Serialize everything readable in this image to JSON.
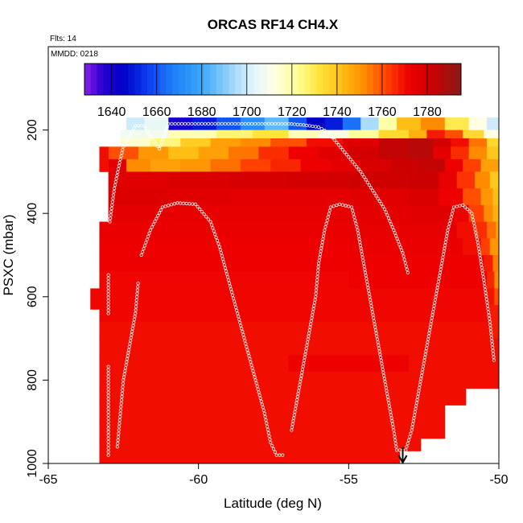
{
  "chart_data": {
    "type": "heatmap",
    "title": "ORCAS RF14 CH4.X",
    "flights_note": "Flts: 14",
    "date_note": "MMDD: 0218",
    "xlabel": "Latitude (deg N)",
    "ylabel": "PSXC (mbar)",
    "xlim": [
      -65,
      -50
    ],
    "ylim": [
      1000,
      0
    ],
    "x_ticks": [
      -65,
      -60,
      -55,
      -50
    ],
    "x_tick_labels": [
      "-65",
      "-60",
      "-55",
      "-50"
    ],
    "y_ticks": [
      200,
      400,
      600,
      800,
      1000
    ],
    "y_tick_labels": [
      "200",
      "400",
      "600",
      "800",
      "1000"
    ],
    "colorbar": {
      "range": [
        1628,
        1795
      ],
      "ticks": [
        1640,
        1660,
        1680,
        1700,
        1720,
        1740,
        1760,
        1780
      ],
      "tick_labels": [
        "1640",
        "1660",
        "1680",
        "1700",
        "1720",
        "1740",
        "1760",
        "1780"
      ]
    },
    "colormap": [
      {
        "v": 1628,
        "c": "#8a1fe6"
      },
      {
        "v": 1636,
        "c": "#2a00d4"
      },
      {
        "v": 1645,
        "c": "#0000c8"
      },
      {
        "v": 1656,
        "c": "#0c3cf0"
      },
      {
        "v": 1667,
        "c": "#1e7cf8"
      },
      {
        "v": 1680,
        "c": "#3aa8fa"
      },
      {
        "v": 1693,
        "c": "#9ad4fb"
      },
      {
        "v": 1703,
        "c": "#e4f5fd"
      },
      {
        "v": 1712,
        "c": "#ffffe4"
      },
      {
        "v": 1722,
        "c": "#ffff99"
      },
      {
        "v": 1732,
        "c": "#ffe43c"
      },
      {
        "v": 1742,
        "c": "#ffbe14"
      },
      {
        "v": 1752,
        "c": "#ff8c00"
      },
      {
        "v": 1762,
        "c": "#ff4000"
      },
      {
        "v": 1772,
        "c": "#ee0000"
      },
      {
        "v": 1782,
        "c": "#cc0000"
      },
      {
        "v": 1795,
        "c": "#8a1a1a"
      }
    ],
    "layers": [
      {
        "p0": 170,
        "p1": 200,
        "x0": -62.4,
        "x1": -50,
        "lat": [
          -62.4,
          -61.8,
          -61,
          -60.2,
          -59.4,
          -58.6,
          -57.8,
          -57,
          -56.4,
          -55.8,
          -55.2,
          -54.6,
          -54,
          -53.4,
          -52.6,
          -51.8,
          -51,
          -50.4,
          -50
        ],
        "val": [
          1700,
          1705,
          1640,
          1650,
          1660,
          1672,
          1685,
          1660,
          1645,
          1650,
          1665,
          1695,
          1720,
          1742,
          1752,
          1730,
          1712,
          1700,
          1700
        ]
      },
      {
        "p0": 200,
        "p1": 220,
        "x0": -62.6,
        "x1": -50,
        "lat": [
          -62.6,
          -61,
          -59.4,
          -58.2,
          -57,
          -56,
          -55,
          -54,
          -53,
          -52.4,
          -51.8,
          -51.2,
          -50.5,
          -50
        ],
        "val": [
          1708,
          1718,
          1726,
          1732,
          1718,
          1712,
          1722,
          1735,
          1745,
          1768,
          1760,
          1735,
          1712,
          1702
        ]
      },
      {
        "p0": 220,
        "p1": 240,
        "x0": -62.6,
        "x1": -50,
        "lat": [
          -62.6,
          -61.6,
          -60.6,
          -59.6,
          -58.6,
          -57.6,
          -56.4,
          -55.2,
          -54,
          -53,
          -52.2,
          -51.6,
          -51,
          -50.4,
          -50
        ],
        "val": [
          1715,
          1725,
          1738,
          1748,
          1752,
          1760,
          1770,
          1776,
          1784,
          1786,
          1780,
          1770,
          1755,
          1735,
          1710
        ]
      },
      {
        "p0": 240,
        "p1": 270,
        "x0": -63,
        "x1": -50,
        "lat": [
          -63,
          -62,
          -61,
          -60,
          -59,
          -58,
          -57,
          -56,
          -55,
          -54,
          -53,
          -52.2,
          -51.6,
          -51,
          -50.4,
          -50
        ],
        "val": [
          1760,
          1750,
          1742,
          1748,
          1755,
          1765,
          1772,
          1776,
          1780,
          1784,
          1786,
          1775,
          1765,
          1752,
          1740,
          1722
        ]
      },
      {
        "p0": 270,
        "p1": 300,
        "x0": -63,
        "x1": -50,
        "lat": [
          -63,
          -62.4,
          -61.6,
          -60.6,
          -59.6,
          -58.6,
          -57.6,
          -56.6,
          -55.6,
          -54.6,
          -53.6,
          -52.6,
          -51.8,
          -51.2,
          -50.6,
          -50
        ],
        "val": [
          1775,
          1752,
          1748,
          1750,
          1756,
          1762,
          1766,
          1772,
          1775,
          1778,
          1782,
          1784,
          1772,
          1762,
          1748,
          1730
        ]
      },
      {
        "p0": 300,
        "p1": 340,
        "x0": -63,
        "x1": -50,
        "lat": [
          -63,
          -61,
          -59,
          -57,
          -55,
          -53,
          -52,
          -51.4,
          -50.8,
          -50.3
        ],
        "val": [
          1776,
          1778,
          1779,
          1780,
          1781,
          1782,
          1774,
          1764,
          1752,
          1740
        ]
      },
      {
        "p0": 340,
        "p1": 380,
        "x0": -63,
        "x1": -50,
        "lat": [
          -63,
          -61,
          -59,
          -57,
          -55,
          -53,
          -52,
          -51.2,
          -50.6,
          -50.2
        ],
        "val": [
          1777,
          1776,
          1775,
          1775,
          1776,
          1778,
          1772,
          1760,
          1750,
          1742
        ]
      },
      {
        "p0": 380,
        "p1": 420,
        "x0": -63,
        "x1": -50,
        "lat": [
          -63,
          -61,
          -59,
          -57,
          -55,
          -53,
          -51.6,
          -51,
          -50.5,
          -50.2
        ],
        "val": [
          1775,
          1774,
          1774,
          1774,
          1775,
          1776,
          1772,
          1762,
          1752,
          1745
        ]
      },
      {
        "p0": 420,
        "p1": 460,
        "x0": -63.3,
        "x1": -50,
        "lat": [
          -63.3,
          -61,
          -59,
          -57,
          -55,
          -53,
          -51.4,
          -50.8,
          -50.4,
          -50.1
        ],
        "val": [
          1773,
          1773,
          1773,
          1773,
          1774,
          1774,
          1770,
          1765,
          1756,
          1748
        ]
      },
      {
        "p0": 460,
        "p1": 500,
        "x0": -63.3,
        "x1": -50,
        "lat": [
          -63.3,
          -61,
          -59,
          -57,
          -55,
          -53,
          -51.2,
          -50.6,
          -50.3
        ],
        "val": [
          1772,
          1772,
          1772,
          1772,
          1773,
          1773,
          1770,
          1762,
          1750
        ]
      },
      {
        "p0": 500,
        "p1": 540,
        "x0": -63.3,
        "x1": -50,
        "lat": [
          -63.3,
          -61,
          -59,
          -57,
          -55,
          -53,
          -51,
          -50.5,
          -50.2
        ],
        "val": [
          1772,
          1772,
          1772,
          1772,
          1772,
          1772,
          1772,
          1768,
          1754
        ]
      },
      {
        "p0": 540,
        "p1": 580,
        "x0": -63.3,
        "x1": -50,
        "lat": [
          -63.3,
          -61,
          -59,
          -57,
          -55,
          -53,
          -51,
          -50.4,
          -50.15
        ],
        "val": [
          1771,
          1771,
          1771,
          1771,
          1772,
          1772,
          1772,
          1766,
          1752
        ]
      },
      {
        "p0": 580,
        "p1": 620,
        "x0": -63.3,
        "x1": -50,
        "lat": [
          -63.3,
          -61,
          -59,
          -57,
          -55,
          -53,
          -51,
          -50.4,
          -50.15
        ],
        "val": [
          1771,
          1771,
          1771,
          1771,
          1771,
          1771,
          1771,
          1769,
          1760
        ]
      },
      {
        "p0": 620,
        "p1": 660,
        "x0": -63.3,
        "x1": -50,
        "lat": [
          -63.3,
          -61,
          -59,
          -57,
          -55,
          -53,
          -51,
          -50.3
        ],
        "val": [
          1771,
          1771,
          1771,
          1771,
          1771,
          1771,
          1771,
          1768
        ]
      },
      {
        "p0": 660,
        "p1": 700,
        "x0": -63.3,
        "x1": -50,
        "lat": [
          -63.3,
          -61,
          -59,
          -57,
          -55,
          -53,
          -51,
          -50.3
        ],
        "val": [
          1770,
          1770,
          1770,
          1770,
          1770,
          1770,
          1770,
          1768
        ]
      },
      {
        "p0": 700,
        "p1": 740,
        "x0": -63.3,
        "x1": -50,
        "lat": [
          -63.3,
          -61,
          -59,
          -57,
          -55,
          -53,
          -51
        ],
        "val": [
          1770,
          1770,
          1770,
          1770,
          1770,
          1770,
          1770
        ]
      },
      {
        "p0": 740,
        "p1": 780,
        "x0": -63.3,
        "x1": -50,
        "lat": [
          -63.3,
          -61,
          -59,
          -57,
          -55,
          -53,
          -51
        ],
        "val": [
          1770,
          1770,
          1770,
          1772,
          1772,
          1770,
          1770
        ]
      },
      {
        "p0": 780,
        "p1": 820,
        "x0": -63.3,
        "x1": -50,
        "lat": [
          -63.3,
          -61,
          -59,
          -57,
          -55,
          -53,
          -51
        ],
        "val": [
          1770,
          1770,
          1770,
          1770,
          1770,
          1770,
          1770
        ]
      },
      {
        "p0": 820,
        "p1": 860,
        "x0": -63.3,
        "x1": -51.1,
        "lat": [
          -63.3,
          -61,
          -59,
          -57,
          -55,
          -53
        ],
        "val": [
          1770,
          1770,
          1770,
          1770,
          1770,
          1770
        ]
      },
      {
        "p0": 860,
        "p1": 900,
        "x0": -63.3,
        "x1": -51.8,
        "lat": [
          -63.3,
          -61,
          -59,
          -57,
          -55,
          -53
        ],
        "val": [
          1770,
          1770,
          1770,
          1770,
          1770,
          1770
        ]
      },
      {
        "p0": 900,
        "p1": 940,
        "x0": -63.3,
        "x1": -51.8,
        "lat": [
          -63.3,
          -61,
          -59,
          -57,
          -55,
          -53
        ],
        "val": [
          1770,
          1770,
          1770,
          1770,
          1770,
          1770
        ]
      },
      {
        "p0": 940,
        "p1": 970,
        "x0": -63.3,
        "x1": -52.6,
        "lat": [
          -63.3,
          -61,
          -59,
          -57,
          -55,
          -53
        ],
        "val": [
          1770,
          1770,
          1770,
          1770,
          1770,
          1770
        ]
      },
      {
        "p0": 970,
        "p1": 1000,
        "x0": -63.3,
        "x1": -53.3,
        "lat": [
          -63.3,
          -61,
          -59,
          -57,
          -55
        ],
        "val": [
          1770,
          1770,
          1770,
          1770,
          1770
        ]
      },
      {
        "p0": 580,
        "p1": 630,
        "x0": -63.6,
        "x1": -63.3,
        "lat": [
          -63.6
        ],
        "val": [
          1771
        ]
      },
      {
        "p0": 240,
        "p1": 300,
        "x0": -63.3,
        "x1": -63,
        "lat": [
          -63.3
        ],
        "val": [
          1770
        ]
      }
    ],
    "flight_track": [
      [
        -63,
        980
      ],
      [
        -63,
        940
      ],
      [
        -63,
        860
      ],
      [
        -63,
        760
      ],
      [
        -63,
        640
      ],
      [
        -63,
        540
      ],
      [
        -62.95,
        420
      ],
      [
        -62.8,
        340
      ],
      [
        -62.6,
        270
      ],
      [
        -62.5,
        240
      ],
      [
        -62.3,
        215
      ],
      [
        -62.1,
        190
      ],
      [
        -61.8,
        190
      ],
      [
        -61.6,
        215
      ],
      [
        -61.3,
        245
      ],
      [
        -61,
        185
      ],
      [
        -60,
        185
      ],
      [
        -59,
        185
      ],
      [
        -58,
        185
      ],
      [
        -57,
        185
      ],
      [
        -56.5,
        188
      ],
      [
        -56,
        193
      ],
      [
        -55.7,
        205
      ],
      [
        -55.4,
        230
      ],
      [
        -55,
        265
      ],
      [
        -54.6,
        300
      ],
      [
        -54.2,
        345
      ],
      [
        -53.8,
        390
      ],
      [
        -53.5,
        440
      ],
      [
        -53.2,
        495
      ],
      [
        -53.0,
        550
      ],
      [
        -61.9,
        500
      ],
      [
        -61.6,
        440
      ],
      [
        -61.2,
        385
      ],
      [
        -60.7,
        375
      ],
      [
        -60.1,
        378
      ],
      [
        -59.6,
        420
      ],
      [
        -59.3,
        480
      ],
      [
        -59.0,
        560
      ],
      [
        -58.7,
        640
      ],
      [
        -58.4,
        720
      ],
      [
        -58.1,
        800
      ],
      [
        -57.8,
        880
      ],
      [
        -57.6,
        950
      ],
      [
        -57.4,
        980
      ],
      [
        -57.1,
        980
      ],
      [
        -62.7,
        960
      ],
      [
        -62.6,
        880
      ],
      [
        -62.5,
        800
      ],
      [
        -62.3,
        720
      ],
      [
        -62.1,
        640
      ],
      [
        -62.0,
        560
      ],
      [
        -56.9,
        920
      ],
      [
        -56.7,
        840
      ],
      [
        -56.5,
        760
      ],
      [
        -56.3,
        680
      ],
      [
        -56.1,
        600
      ],
      [
        -56.0,
        520
      ],
      [
        -55.8,
        440
      ],
      [
        -55.6,
        385
      ],
      [
        -55.3,
        378
      ],
      [
        -54.9,
        385
      ],
      [
        -54.7,
        440
      ],
      [
        -54.5,
        520
      ],
      [
        -54.3,
        600
      ],
      [
        -54.1,
        680
      ],
      [
        -53.9,
        760
      ],
      [
        -53.7,
        840
      ],
      [
        -53.5,
        920
      ],
      [
        -53.4,
        968
      ],
      [
        -53.1,
        968
      ],
      [
        -52.9,
        920
      ],
      [
        -52.7,
        840
      ],
      [
        -52.5,
        760
      ],
      [
        -52.3,
        680
      ],
      [
        -52.1,
        600
      ],
      [
        -51.9,
        520
      ],
      [
        -51.7,
        440
      ],
      [
        -51.5,
        385
      ],
      [
        -51.2,
        380
      ],
      [
        -50.9,
        400
      ],
      [
        -50.7,
        470
      ],
      [
        -50.5,
        560
      ],
      [
        -50.3,
        660
      ],
      [
        -50.15,
        760
      ]
    ],
    "arrow_marker": {
      "lat": -53.2,
      "label": "down-arrow"
    }
  }
}
